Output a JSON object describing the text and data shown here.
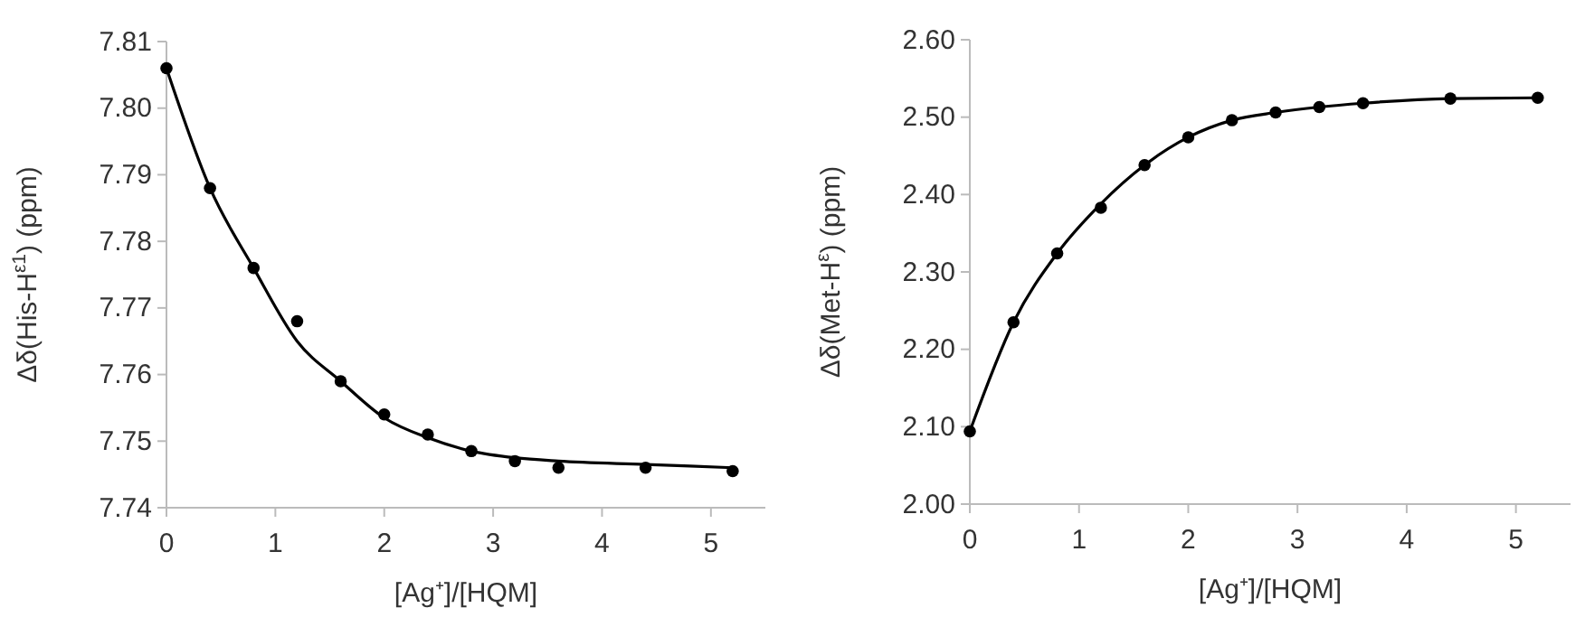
{
  "chart_data": [
    {
      "type": "scatter",
      "xlabel": "[Ag⁺]/[HQM]",
      "ylabel": "Δδ(His-H$^{ε1}$) (ppm)",
      "xlim": [
        0,
        5.5
      ],
      "xticks": [
        0,
        1,
        2,
        3,
        4,
        5
      ],
      "ylim": [
        7.74,
        7.81
      ],
      "yticks": [
        {
          "value": 7.74,
          "label": "7.74"
        },
        {
          "value": 7.75,
          "label": "7.75"
        },
        {
          "value": 7.76,
          "label": "7.76"
        },
        {
          "value": 7.77,
          "label": "7.77"
        },
        {
          "value": 7.78,
          "label": "7.78"
        },
        {
          "value": 7.79,
          "label": "7.79"
        },
        {
          "value": 7.8,
          "label": "7.80"
        },
        {
          "value": 7.81,
          "label": "7.81"
        }
      ],
      "grid": false,
      "series": [
        {
          "marker": "circle",
          "color": "#000000",
          "x": [
            0,
            0.4,
            0.8,
            1.2,
            1.6,
            2,
            2.4,
            2.8,
            3.2,
            3.6,
            4.4,
            5.2
          ],
          "values": [
            7.806,
            7.788,
            7.776,
            7.768,
            7.759,
            7.754,
            7.751,
            7.7485,
            7.747,
            7.746,
            7.746,
            7.7455
          ]
        },
        {
          "type": "line",
          "marker": "none",
          "line_style": "solid",
          "color": "#000000",
          "x": [
            0,
            0.4,
            0.8,
            1.2,
            1.6,
            2,
            2.4,
            2.8,
            3.2,
            3.6,
            4.4,
            5.2
          ],
          "values": [
            7.806,
            7.788,
            7.776,
            7.765,
            7.759,
            7.7535,
            7.7505,
            7.7485,
            7.7475,
            7.747,
            7.7465,
            7.746
          ]
        }
      ]
    },
    {
      "type": "scatter",
      "xlabel": "[Ag⁺]/[HQM]",
      "ylabel": "Δδ(Met-H$^{ε}$) (ppm)",
      "xlim": [
        0,
        5.5
      ],
      "xticks": [
        0,
        1,
        2,
        3,
        4,
        5
      ],
      "ylim": [
        2.0,
        2.6
      ],
      "yticks": [
        {
          "value": 2.0,
          "label": "2.00"
        },
        {
          "value": 2.1,
          "label": "2.10"
        },
        {
          "value": 2.2,
          "label": "2.20"
        },
        {
          "value": 2.3,
          "label": "2.30"
        },
        {
          "value": 2.4,
          "label": "2.40"
        },
        {
          "value": 2.5,
          "label": "2.50"
        },
        {
          "value": 2.6,
          "label": "2.60"
        }
      ],
      "grid": false,
      "series": [
        {
          "marker": "circle",
          "color": "#000000",
          "x": [
            0,
            0.4,
            0.8,
            1.2,
            1.6,
            2,
            2.4,
            2.8,
            3.2,
            3.6,
            4.4,
            5.2
          ],
          "values": [
            2.094,
            2.235,
            2.324,
            2.383,
            2.438,
            2.474,
            2.496,
            2.506,
            2.513,
            2.518,
            2.524,
            2.525
          ]
        },
        {
          "type": "line",
          "marker": "none",
          "line_style": "solid",
          "color": "#000000",
          "x": [
            0,
            0.4,
            0.8,
            1.2,
            1.6,
            2,
            2.4,
            2.8,
            3.2,
            3.6,
            4.4,
            5.2
          ],
          "values": [
            2.094,
            2.235,
            2.324,
            2.388,
            2.438,
            2.474,
            2.496,
            2.506,
            2.513,
            2.518,
            2.524,
            2.525
          ]
        }
      ]
    }
  ]
}
